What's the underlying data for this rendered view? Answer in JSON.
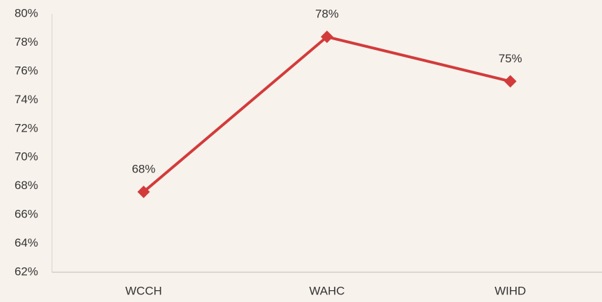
{
  "chart_data": {
    "type": "line",
    "categories": [
      "WCCH",
      "WAHC",
      "WIHD"
    ],
    "series": [
      {
        "color": "#d23b3b",
        "values": [
          67.6,
          78.4,
          75.3
        ],
        "value_labels": [
          "68%",
          "78%",
          "75%"
        ]
      }
    ],
    "ylim": [
      62,
      80
    ],
    "yticks": [
      {
        "value": 62,
        "label": "62%"
      },
      {
        "value": 64,
        "label": "64%"
      },
      {
        "value": 66,
        "label": "66%"
      },
      {
        "value": 68,
        "label": "68%"
      },
      {
        "value": 70,
        "label": "70%"
      },
      {
        "value": 72,
        "label": "72%"
      },
      {
        "value": 74,
        "label": "74%"
      },
      {
        "value": 76,
        "label": "76%"
      },
      {
        "value": 78,
        "label": "78%"
      },
      {
        "value": 80,
        "label": "80%"
      }
    ],
    "grid": false
  }
}
